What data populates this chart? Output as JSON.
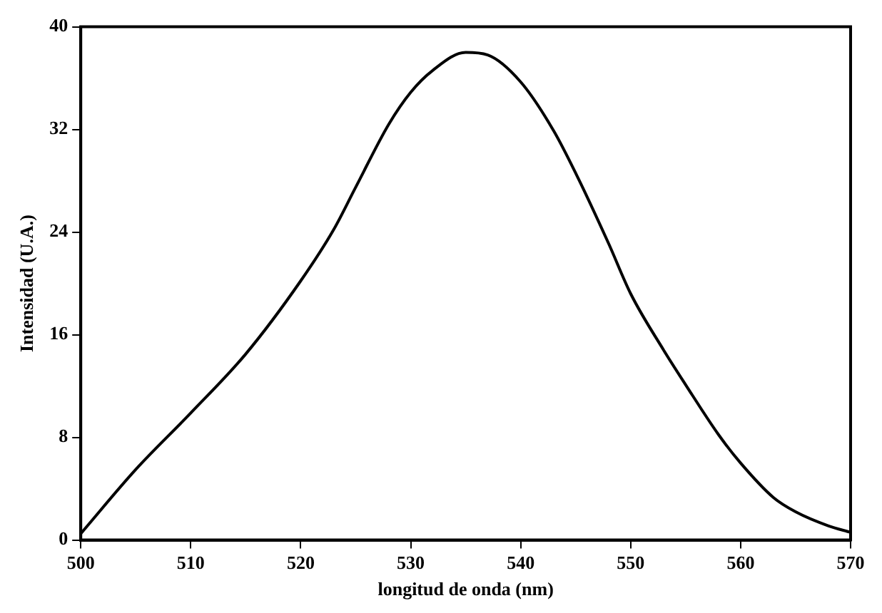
{
  "chart_data": {
    "type": "line",
    "xlabel": "longitud de onda (nm)",
    "ylabel": "Intensidad (U.A.)",
    "x": [
      500,
      505,
      510,
      515,
      520,
      523,
      525,
      528,
      530,
      532,
      535,
      537,
      540,
      543,
      545,
      548,
      550,
      553,
      555,
      558,
      560,
      563,
      565,
      568,
      570
    ],
    "series": [
      {
        "color": "#000000",
        "values": [
          0.5,
          5.5,
          9.9,
          14.5,
          20.2,
          24.2,
          27.5,
          32.4,
          34.9,
          36.6,
          38.0,
          37.8,
          35.7,
          31.9,
          28.6,
          23.1,
          19.2,
          14.8,
          12.1,
          8.2,
          6.0,
          3.3,
          2.2,
          1.1,
          0.6
        ]
      }
    ],
    "xlim": [
      500,
      570
    ],
    "xticks": [
      500,
      510,
      520,
      530,
      540,
      550,
      560,
      570
    ],
    "ylim": [
      0,
      40
    ],
    "yticks": [
      0,
      8,
      16,
      24,
      32,
      40
    ],
    "grid": false,
    "legend": false,
    "marker": "none",
    "line_style": "solid"
  }
}
